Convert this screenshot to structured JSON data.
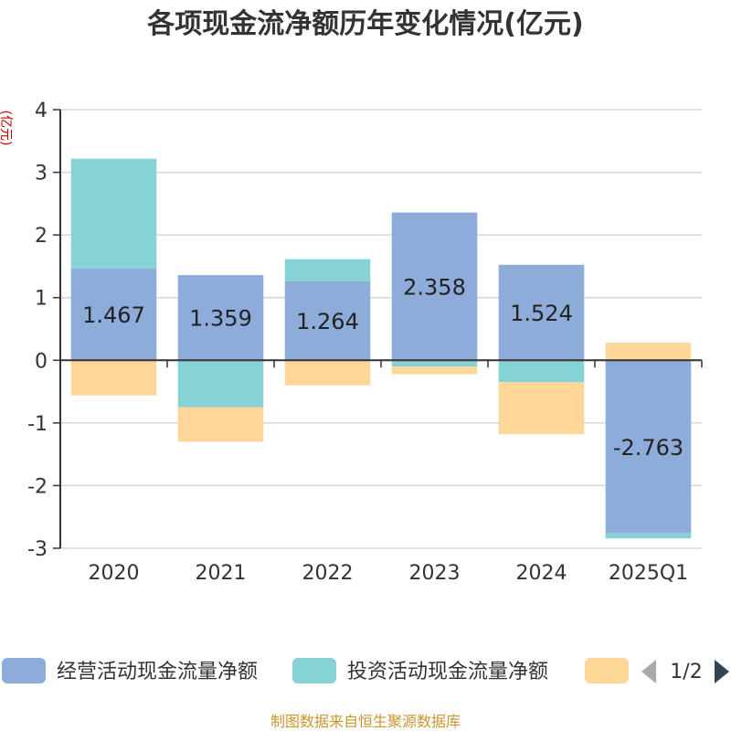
{
  "chart_data": {
    "type": "bar",
    "stacked": true,
    "title": "各项现金流净额历年变化情况(亿元)",
    "ylabel": "(亿元)",
    "categories": [
      "2020",
      "2021",
      "2022",
      "2023",
      "2024",
      "2025Q1"
    ],
    "ylim": [
      -3,
      4
    ],
    "yticks": [
      4,
      3,
      2,
      1,
      0,
      -1,
      -2,
      -3
    ],
    "grid": true,
    "series": [
      {
        "name": "经营活动现金流量净额",
        "color": "#8eacd9",
        "values": [
          1.467,
          1.359,
          1.264,
          2.358,
          1.524,
          -2.763
        ],
        "labels": [
          "1.467",
          "1.359",
          "1.264",
          "2.358",
          "1.524",
          "-2.763"
        ]
      },
      {
        "name": "投资活动现金流量净额",
        "color": "#86d3d6",
        "values": [
          1.75,
          -0.75,
          0.35,
          -0.1,
          -0.35,
          -0.08
        ]
      },
      {
        "name": "",
        "color": "#fdd698",
        "values": [
          -0.56,
          -0.55,
          -0.4,
          -0.12,
          -0.83,
          0.28
        ]
      }
    ],
    "legend": {
      "position": "bottom",
      "page": "1/2"
    },
    "source": "制图数据来自恒生聚源数据库"
  }
}
